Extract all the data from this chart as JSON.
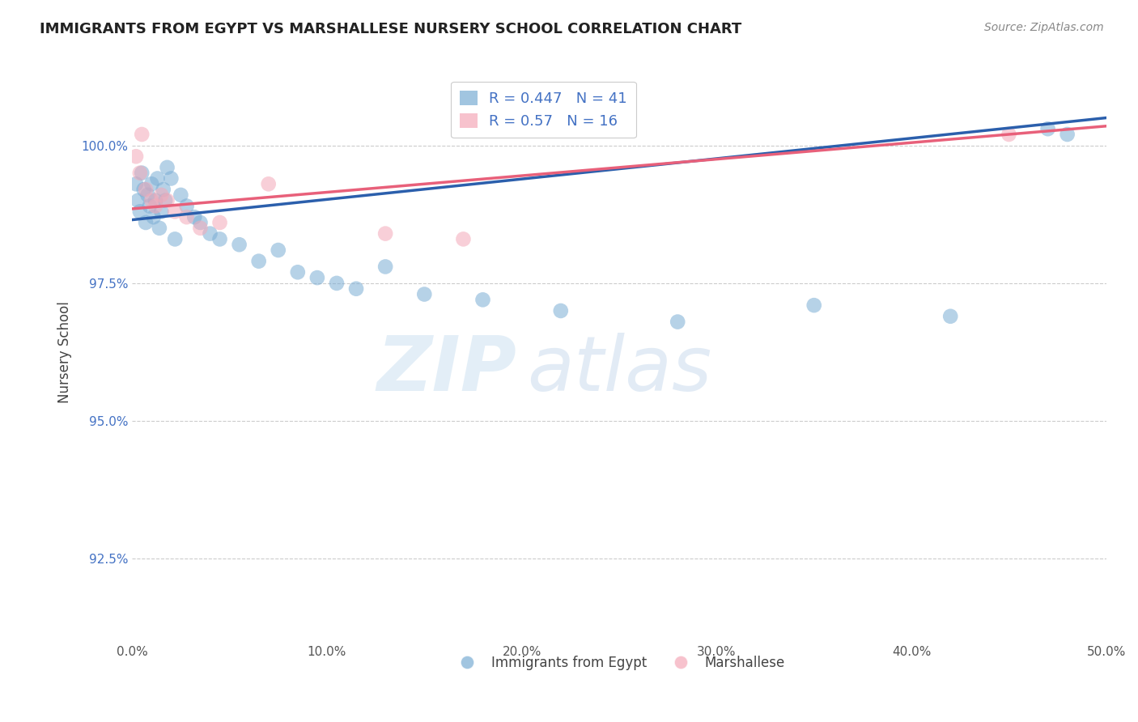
{
  "title": "IMMIGRANTS FROM EGYPT VS MARSHALLESE NURSERY SCHOOL CORRELATION CHART",
  "source_text": "Source: ZipAtlas.com",
  "ylabel": "Nursery School",
  "xlim": [
    0.0,
    50.0
  ],
  "ylim": [
    91.0,
    101.5
  ],
  "yticks": [
    92.5,
    95.0,
    97.5,
    100.0
  ],
  "ytick_labels": [
    "92.5%",
    "95.0%",
    "97.5%",
    "100.0%"
  ],
  "xticks": [
    0.0,
    10.0,
    20.0,
    30.0,
    40.0,
    50.0
  ],
  "xtick_labels": [
    "0.0%",
    "10.0%",
    "20.0%",
    "30.0%",
    "40.0%",
    "50.0%"
  ],
  "blue_color": "#7aadd4",
  "pink_color": "#f4a9b8",
  "blue_line_color": "#2b5fac",
  "pink_line_color": "#e8607a",
  "blue_R": 0.447,
  "blue_N": 41,
  "pink_R": 0.57,
  "pink_N": 16,
  "blue_points_x": [
    0.2,
    0.3,
    0.4,
    0.5,
    0.6,
    0.7,
    0.8,
    0.9,
    1.0,
    1.1,
    1.2,
    1.3,
    1.4,
    1.5,
    1.6,
    1.7,
    1.8,
    2.0,
    2.2,
    2.5,
    2.8,
    3.2,
    3.5,
    4.0,
    4.5,
    5.5,
    6.5,
    7.5,
    8.5,
    9.5,
    10.5,
    11.5,
    13.0,
    15.0,
    18.0,
    22.0,
    28.0,
    35.0,
    42.0,
    47.0,
    48.0
  ],
  "blue_points_y": [
    99.3,
    99.0,
    98.8,
    99.5,
    99.2,
    98.6,
    99.1,
    98.9,
    99.3,
    98.7,
    99.0,
    99.4,
    98.5,
    98.8,
    99.2,
    99.0,
    99.6,
    99.4,
    98.3,
    99.1,
    98.9,
    98.7,
    98.6,
    98.4,
    98.3,
    98.2,
    97.9,
    98.1,
    97.7,
    97.6,
    97.5,
    97.4,
    97.8,
    97.3,
    97.2,
    97.0,
    96.8,
    97.1,
    96.9,
    100.3,
    100.2
  ],
  "pink_points_x": [
    0.2,
    0.4,
    0.5,
    0.7,
    1.0,
    1.2,
    1.5,
    1.8,
    2.2,
    2.8,
    3.5,
    4.5,
    7.0,
    13.0,
    17.0,
    45.0
  ],
  "pink_points_y": [
    99.8,
    99.5,
    100.2,
    99.2,
    99.0,
    98.9,
    99.1,
    99.0,
    98.8,
    98.7,
    98.5,
    98.6,
    99.3,
    98.4,
    98.3,
    100.2
  ],
  "blue_trend_x0": 0.0,
  "blue_trend_y0": 98.65,
  "blue_trend_x1": 50.0,
  "blue_trend_y1": 100.5,
  "pink_trend_x0": 0.0,
  "pink_trend_y0": 98.85,
  "pink_trend_x1": 50.0,
  "pink_trend_y1": 100.35,
  "watermark_zip": "ZIP",
  "watermark_atlas": "atlas",
  "legend_label_blue": "Immigrants from Egypt",
  "legend_label_pink": "Marshallese"
}
